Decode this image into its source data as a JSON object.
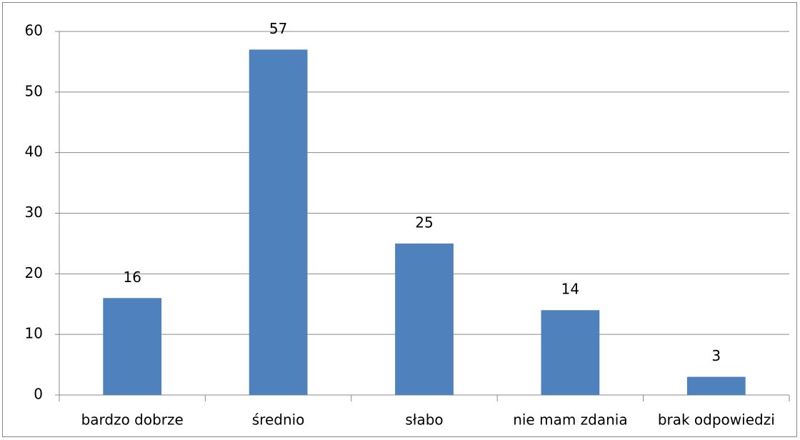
{
  "chart_data": {
    "type": "bar",
    "categories": [
      "bardzo dobrze",
      "średnio",
      "słabo",
      "nie mam zdania",
      "brak odpowiedzi"
    ],
    "values": [
      16,
      57,
      25,
      14,
      3
    ],
    "color": "#4f81bd",
    "ylim": [
      0,
      60
    ],
    "yticks": [
      0,
      10,
      20,
      30,
      40,
      50,
      60
    ],
    "grid": true,
    "data_labels": true
  }
}
